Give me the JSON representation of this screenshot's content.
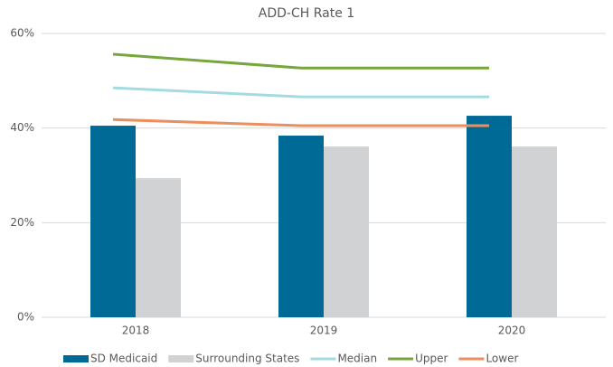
{
  "chart_data": {
    "type": "combo",
    "title": "ADD-CH Rate 1",
    "categories": [
      "2018",
      "2019",
      "2020"
    ],
    "series": [
      {
        "name": "SD Medicaid",
        "type": "bar",
        "color": "#006a96",
        "values": [
          40.5,
          38.4,
          42.6
        ]
      },
      {
        "name": "Surrounding States",
        "type": "bar",
        "color": "#d0d2d3",
        "values": [
          29.4,
          36.1,
          36.1
        ]
      },
      {
        "name": "Median",
        "type": "line",
        "color": "#a4dbe2",
        "values": [
          48.5,
          46.6,
          46.6
        ]
      },
      {
        "name": "Upper",
        "type": "line",
        "color": "#77a63c",
        "values": [
          55.6,
          52.7,
          52.7
        ]
      },
      {
        "name": "Lower",
        "type": "line",
        "color": "#ec8f5f",
        "values": [
          41.8,
          40.5,
          40.5
        ]
      }
    ],
    "ylim": [
      0,
      60
    ],
    "yticks": [
      {
        "value": 0,
        "label": "0%"
      },
      {
        "value": 20,
        "label": "20%"
      },
      {
        "value": 40,
        "label": "40%"
      },
      {
        "value": 60,
        "label": "60%"
      }
    ],
    "grid": true,
    "legend": "bottom"
  }
}
